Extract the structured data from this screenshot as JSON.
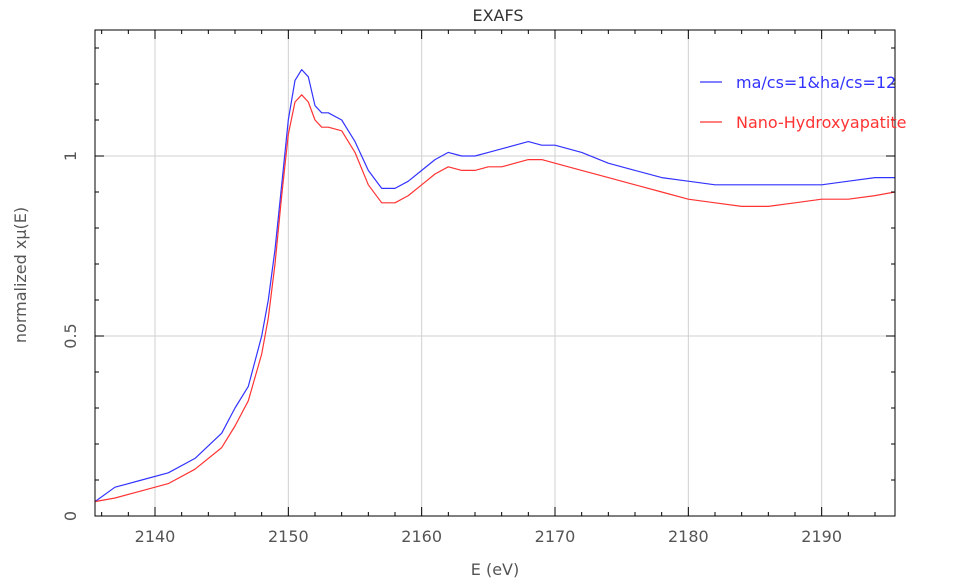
{
  "chart_data": {
    "type": "line",
    "title": "EXAFS",
    "xlabel": "E (eV)",
    "ylabel": "normalized xμ(E)",
    "xlim": [
      2135.5,
      2195.5
    ],
    "ylim": [
      0,
      1.35
    ],
    "xticks": [
      2140,
      2150,
      2160,
      2170,
      2180,
      2190
    ],
    "yticks": [
      0,
      0.5,
      1
    ],
    "ytick_labels": [
      "0",
      "0.5",
      "1"
    ],
    "grid": true,
    "legend_position": "top-right",
    "series": [
      {
        "name": "ma/cs=1&ha/cs=12",
        "color": "#3333ff",
        "x": [
          2135.5,
          2137,
          2139,
          2141,
          2143,
          2145,
          2146,
          2147,
          2148,
          2148.5,
          2149,
          2149.5,
          2150,
          2150.5,
          2151,
          2151.5,
          2152,
          2152.5,
          2153,
          2154,
          2155,
          2156,
          2157,
          2158,
          2159,
          2160,
          2161,
          2162,
          2163,
          2164,
          2165,
          2166,
          2167,
          2168,
          2169,
          2170,
          2172,
          2174,
          2176,
          2178,
          2180,
          2182,
          2184,
          2186,
          2188,
          2190,
          2192,
          2194,
          2195.5
        ],
        "y": [
          0.04,
          0.08,
          0.1,
          0.12,
          0.16,
          0.23,
          0.3,
          0.36,
          0.5,
          0.6,
          0.74,
          0.92,
          1.1,
          1.21,
          1.24,
          1.22,
          1.14,
          1.12,
          1.12,
          1.1,
          1.04,
          0.96,
          0.91,
          0.91,
          0.93,
          0.96,
          0.99,
          1.01,
          1.0,
          1.0,
          1.01,
          1.02,
          1.03,
          1.04,
          1.03,
          1.03,
          1.01,
          0.98,
          0.96,
          0.94,
          0.93,
          0.92,
          0.92,
          0.92,
          0.92,
          0.92,
          0.93,
          0.94,
          0.94
        ]
      },
      {
        "name": "Nano-Hydroxyapatite",
        "color": "#ff3333",
        "x": [
          2135.5,
          2137,
          2139,
          2141,
          2143,
          2145,
          2146,
          2147,
          2148,
          2148.5,
          2149,
          2149.5,
          2150,
          2150.5,
          2151,
          2151.5,
          2152,
          2152.5,
          2153,
          2154,
          2155,
          2156,
          2157,
          2158,
          2159,
          2160,
          2161,
          2162,
          2163,
          2164,
          2165,
          2166,
          2167,
          2168,
          2169,
          2170,
          2172,
          2174,
          2176,
          2178,
          2180,
          2182,
          2184,
          2186,
          2188,
          2190,
          2192,
          2194,
          2195.5
        ],
        "y": [
          0.04,
          0.05,
          0.07,
          0.09,
          0.13,
          0.19,
          0.25,
          0.32,
          0.45,
          0.55,
          0.7,
          0.89,
          1.06,
          1.15,
          1.17,
          1.15,
          1.1,
          1.08,
          1.08,
          1.07,
          1.01,
          0.92,
          0.87,
          0.87,
          0.89,
          0.92,
          0.95,
          0.97,
          0.96,
          0.96,
          0.97,
          0.97,
          0.98,
          0.99,
          0.99,
          0.98,
          0.96,
          0.94,
          0.92,
          0.9,
          0.88,
          0.87,
          0.86,
          0.86,
          0.87,
          0.88,
          0.88,
          0.89,
          0.9
        ]
      }
    ]
  }
}
